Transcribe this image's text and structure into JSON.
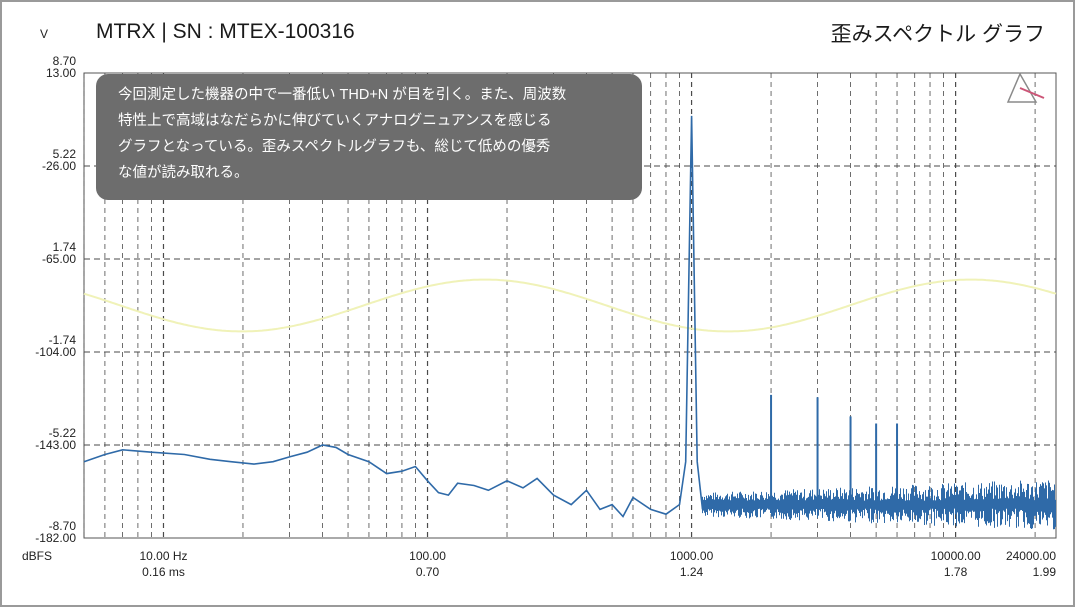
{
  "header": {
    "title": "MTRX | SN : MTEX-100316",
    "right_title": "歪みスペクトル グラフ"
  },
  "note": {
    "lines": [
      "今回測定した機器の中で一番低い THD+N が目を引く。また、周波数",
      "特性上で高域はなだらかに伸びていくアナログニュアンスを感じる",
      "グラフとなっている。歪みスペクトルグラフも、総じて低めの優秀",
      "な値が読み取れる。"
    ]
  },
  "icons": {
    "tool": "triangle-ruler-icon"
  },
  "chart_data": {
    "type": "line",
    "x_scale": "log",
    "xlim": [
      5,
      24000
    ],
    "ylim": [
      -182,
      13
    ],
    "grid": true,
    "left_unit_top": "V",
    "left_unit_bottom": "dBFS",
    "y_ticks_dbfs": [
      "13.00",
      "-26.00",
      "-65.00",
      "-104.00",
      "-143.00",
      "-182.00"
    ],
    "y_ticks_volts": [
      "8.70",
      "5.22",
      "1.74",
      "-1.74",
      "-5.22",
      "-8.70"
    ],
    "x_ticks_hz": [
      "10.00 Hz",
      "100.00",
      "1000.00",
      "10000.00",
      "24000.00"
    ],
    "x_ticks_ms": [
      "0.16 ms",
      "0.70",
      "1.24",
      "1.78",
      "1.99"
    ],
    "colors": {
      "spectrum": "#2f6aa8",
      "waveform": "#f0f2b8",
      "grid": "#4a4a4a"
    },
    "series": [
      {
        "kind": "spectrum",
        "points": [
          [
            5,
            -150
          ],
          [
            6,
            -147
          ],
          [
            7,
            -145
          ],
          [
            9,
            -146
          ],
          [
            12,
            -147
          ],
          [
            15,
            -149
          ],
          [
            18,
            -150
          ],
          [
            22,
            -151
          ],
          [
            26,
            -150
          ],
          [
            30,
            -148
          ],
          [
            35,
            -146
          ],
          [
            40,
            -143
          ],
          [
            45,
            -144
          ],
          [
            50,
            -147
          ],
          [
            60,
            -150
          ],
          [
            70,
            -155
          ],
          [
            80,
            -154
          ],
          [
            90,
            -152
          ],
          [
            100,
            -158
          ],
          [
            110,
            -163
          ],
          [
            120,
            -164
          ],
          [
            130,
            -159
          ],
          [
            150,
            -160
          ],
          [
            170,
            -162
          ],
          [
            200,
            -158
          ],
          [
            230,
            -161
          ],
          [
            260,
            -157
          ],
          [
            300,
            -164
          ],
          [
            350,
            -168
          ],
          [
            400,
            -162
          ],
          [
            450,
            -170
          ],
          [
            500,
            -168
          ],
          [
            550,
            -173
          ],
          [
            600,
            -165
          ],
          [
            700,
            -170
          ],
          [
            800,
            -172
          ],
          [
            900,
            -168
          ],
          [
            950,
            -150
          ],
          [
            1000,
            -5
          ],
          [
            1050,
            -150
          ],
          [
            1100,
            -170
          ]
        ],
        "harmonics": [
          [
            2000,
            -122
          ],
          [
            3000,
            -123
          ],
          [
            4000,
            -131
          ],
          [
            5000,
            -134
          ],
          [
            6000,
            -134
          ]
        ],
        "noise_band": {
          "from": 1100,
          "to": 24000,
          "level": -168
        }
      },
      {
        "kind": "waveform",
        "amplitude_v": 0.97,
        "periods": 2
      }
    ]
  }
}
